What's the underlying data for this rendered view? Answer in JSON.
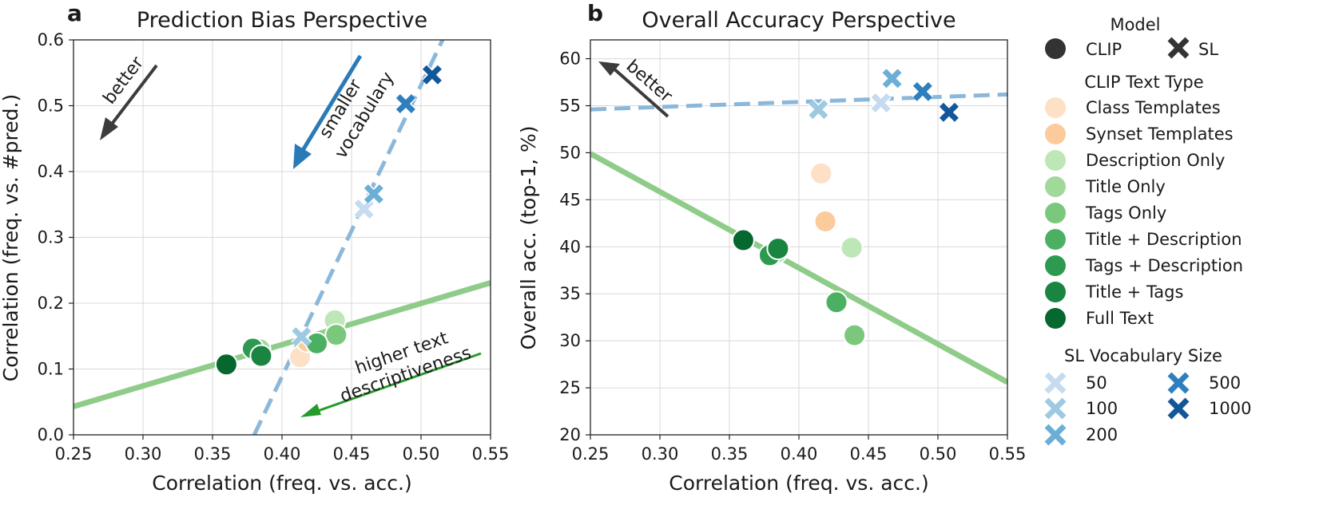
{
  "chart_data": [
    {
      "type": "scatter",
      "panel_letter": "a",
      "title": "Prediction Bias Perspective",
      "xlabel": "Correlation (freq. vs. acc.)",
      "ylabel": "Correlation (freq. vs. #pred.)",
      "xlim": [
        0.25,
        0.55
      ],
      "ylim": [
        0.0,
        0.6
      ],
      "xticks": [
        0.25,
        0.3,
        0.35,
        0.4,
        0.45,
        0.5,
        0.55
      ],
      "yticks": [
        0.0,
        0.1,
        0.2,
        0.3,
        0.4,
        0.5,
        0.6
      ],
      "xtick_labels": [
        "0.25",
        "0.30",
        "0.35",
        "0.40",
        "0.45",
        "0.50",
        "0.55"
      ],
      "ytick_labels": [
        "0.0",
        "0.1",
        "0.2",
        "0.3",
        "0.4",
        "0.5",
        "0.6"
      ],
      "grid": true,
      "clip_points": [
        {
          "series": "Class Templates",
          "x": 0.413,
          "y": 0.118
        },
        {
          "series": "Synset Templates",
          "x": 0.418,
          "y": 0.142
        },
        {
          "series": "Description Only",
          "x": 0.438,
          "y": 0.174
        },
        {
          "series": "Title Only",
          "x": 0.384,
          "y": 0.13
        },
        {
          "series": "Tags Only",
          "x": 0.439,
          "y": 0.152
        },
        {
          "series": "Title + Description",
          "x": 0.425,
          "y": 0.139
        },
        {
          "series": "Tags + Description",
          "x": 0.379,
          "y": 0.131
        },
        {
          "series": "Title + Tags",
          "x": 0.385,
          "y": 0.12
        },
        {
          "series": "Full Text",
          "x": 0.36,
          "y": 0.107
        }
      ],
      "sl_points": [
        {
          "vocab": "50",
          "x": 0.459,
          "y": 0.343
        },
        {
          "vocab": "100",
          "x": 0.414,
          "y": 0.149
        },
        {
          "vocab": "200",
          "x": 0.466,
          "y": 0.366
        },
        {
          "vocab": "500",
          "x": 0.489,
          "y": 0.503
        },
        {
          "vocab": "1000",
          "x": 0.508,
          "y": 0.547
        }
      ],
      "clip_trend": {
        "x": [
          0.25,
          0.55
        ],
        "y": [
          0.043,
          0.231
        ]
      },
      "sl_trend": {
        "x": [
          0.38,
          0.52
        ],
        "y": [
          0.0,
          0.62
        ]
      },
      "annotations": [
        "better",
        "smaller",
        "vocabulary",
        "higher text",
        "descriptiveness"
      ]
    },
    {
      "type": "scatter",
      "panel_letter": "b",
      "title": "Overall Accuracy Perspective",
      "xlabel": "Correlation (freq. vs. acc.)",
      "ylabel": "Overall acc. (top-1, %)",
      "xlim": [
        0.25,
        0.55
      ],
      "ylim": [
        20,
        62
      ],
      "xticks": [
        0.25,
        0.3,
        0.35,
        0.4,
        0.45,
        0.5,
        0.55
      ],
      "yticks": [
        20,
        25,
        30,
        35,
        40,
        45,
        50,
        55,
        60
      ],
      "xtick_labels": [
        "0.25",
        "0.30",
        "0.35",
        "0.40",
        "0.45",
        "0.50",
        "0.55"
      ],
      "ytick_labels": [
        "20",
        "25",
        "30",
        "35",
        "40",
        "45",
        "50",
        "55",
        "60"
      ],
      "grid": true,
      "clip_points": [
        {
          "series": "Class Templates",
          "x": 0.416,
          "y": 47.8
        },
        {
          "series": "Synset Templates",
          "x": 0.419,
          "y": 42.7
        },
        {
          "series": "Description Only",
          "x": 0.438,
          "y": 39.9
        },
        {
          "series": "Title Only",
          "x": 0.384,
          "y": 39.4
        },
        {
          "series": "Tags Only",
          "x": 0.44,
          "y": 30.6
        },
        {
          "series": "Title + Description",
          "x": 0.427,
          "y": 34.1
        },
        {
          "series": "Tags + Description",
          "x": 0.379,
          "y": 39.1
        },
        {
          "series": "Title + Tags",
          "x": 0.385,
          "y": 39.8
        },
        {
          "series": "Full Text",
          "x": 0.36,
          "y": 40.7
        }
      ],
      "sl_points": [
        {
          "vocab": "50",
          "x": 0.459,
          "y": 55.3
        },
        {
          "vocab": "100",
          "x": 0.414,
          "y": 54.6
        },
        {
          "vocab": "200",
          "x": 0.467,
          "y": 57.9
        },
        {
          "vocab": "500",
          "x": 0.489,
          "y": 56.5
        },
        {
          "vocab": "1000",
          "x": 0.508,
          "y": 54.3
        }
      ],
      "clip_trend": {
        "x": [
          0.25,
          0.55
        ],
        "y": [
          49.9,
          25.6
        ]
      },
      "sl_trend": {
        "x": [
          0.25,
          0.55
        ],
        "y": [
          54.6,
          56.2
        ]
      },
      "annotations": [
        "better"
      ]
    }
  ],
  "legend": {
    "model_title": "Model",
    "model_entries": [
      {
        "label": "CLIP",
        "marker": "circle"
      },
      {
        "label": "SL",
        "marker": "cross"
      }
    ],
    "clip_title": "CLIP Text Type",
    "clip_entries": [
      {
        "label": "Class Templates",
        "color": "#fde0c5"
      },
      {
        "label": "Synset Templates",
        "color": "#fbcb9c"
      },
      {
        "label": "Description Only",
        "color": "#bde7b6"
      },
      {
        "label": "Title Only",
        "color": "#a0d99a"
      },
      {
        "label": "Tags Only",
        "color": "#7bc87c"
      },
      {
        "label": "Title + Description",
        "color": "#4cb063"
      },
      {
        "label": "Tags + Description",
        "color": "#2e9a4f"
      },
      {
        "label": "Title + Tags",
        "color": "#1a8441"
      },
      {
        "label": "Full Text",
        "color": "#04682f"
      }
    ],
    "sl_title": "SL Vocabulary Size",
    "sl_entries": [
      {
        "label": "50",
        "color": "#c6dbef"
      },
      {
        "label": "100",
        "color": "#9ecae1"
      },
      {
        "label": "200",
        "color": "#6baed6"
      },
      {
        "label": "500",
        "color": "#2f7fbf"
      },
      {
        "label": "1000",
        "color": "#12579a"
      }
    ]
  },
  "colors": {
    "clip_trend": "#8fcc8a",
    "sl_trend": "#8bb8da",
    "better_arrow": "#3c3c3c",
    "vocab_arrow": "#2a7ab8",
    "vocab_text": "#3a87c4",
    "desc_arrow": "#259b2b",
    "desc_text": "#1e8a2a",
    "grid": "#d9d9d9"
  }
}
